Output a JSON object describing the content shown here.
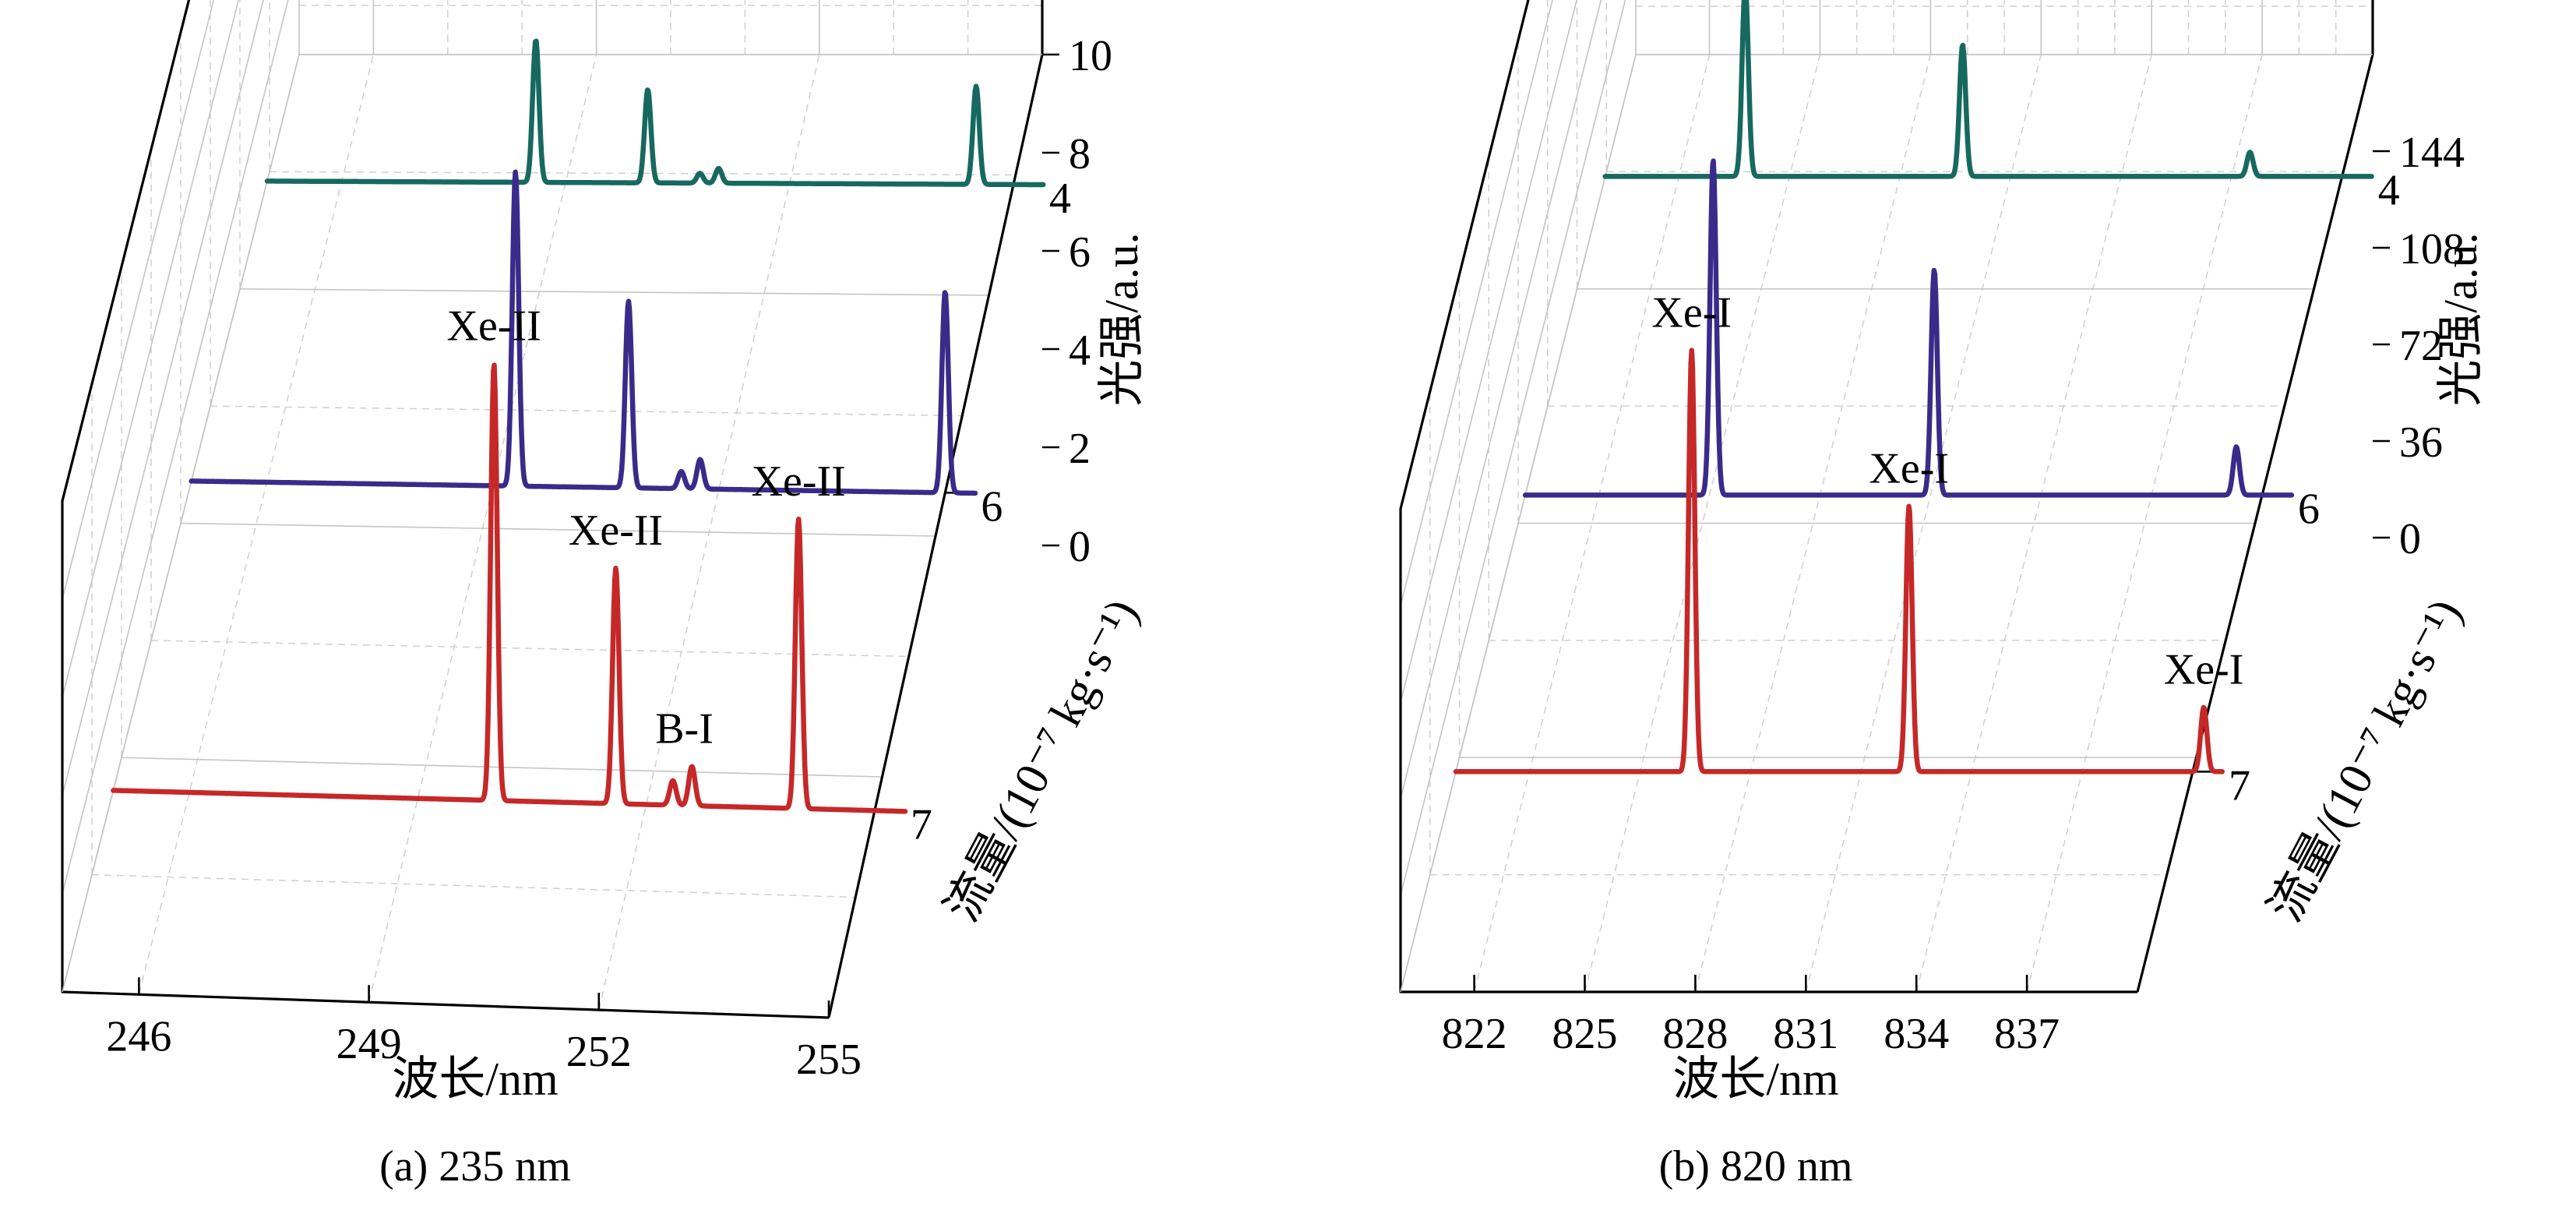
{
  "figure": {
    "colors": {
      "flow_7": "#c62828",
      "flow_6": "#3a2b8a",
      "flow_4": "#17695f"
    }
  },
  "chart_data": [
    {
      "type": "line",
      "caption": "(a) 235 nm",
      "xlabel": "波长/nm",
      "ylabel": "流量/(10⁻⁷ kg·s⁻¹)",
      "zlabel": "光强/a.u.",
      "xlim": [
        245,
        255
      ],
      "x_ticks": [
        "246",
        "249",
        "252",
        "255"
      ],
      "y_ticks": [
        "4",
        "6",
        "7"
      ],
      "zlim": [
        0,
        10
      ],
      "z_ticks": [
        "0",
        "2",
        "4",
        "6",
        "8",
        "10"
      ],
      "grid": true,
      "series": [
        {
          "flow": 7,
          "color": "#c62828",
          "peaks": [
            {
              "x": 250.0,
              "height": 8.9
            },
            {
              "x": 251.6,
              "height": 4.8
            },
            {
              "x": 252.35,
              "height": 0.5
            },
            {
              "x": 252.6,
              "height": 0.8
            },
            {
              "x": 254.0,
              "height": 5.9
            }
          ]
        },
        {
          "flow": 6,
          "color": "#3a2b8a",
          "peaks": [
            {
              "x": 249.3,
              "height": 6.4
            },
            {
              "x": 250.8,
              "height": 3.8
            },
            {
              "x": 251.5,
              "height": 0.35
            },
            {
              "x": 251.75,
              "height": 0.6
            },
            {
              "x": 255.0,
              "height": 4.1
            }
          ]
        },
        {
          "flow": 4,
          "color": "#17695f",
          "peaks": [
            {
              "x": 248.6,
              "height": 2.9
            },
            {
              "x": 250.1,
              "height": 1.9
            },
            {
              "x": 250.8,
              "height": 0.2
            },
            {
              "x": 251.05,
              "height": 0.3
            },
            {
              "x": 254.5,
              "height": 2.0
            }
          ]
        }
      ],
      "annotations": [
        {
          "text": "Xe-II",
          "x": 250.0,
          "flow": 7
        },
        {
          "text": "Xe-II",
          "x": 251.6,
          "flow": 7
        },
        {
          "text": "B-I",
          "x": 252.5,
          "flow": 7
        },
        {
          "text": "Xe-II",
          "x": 254.0,
          "flow": 7
        }
      ]
    },
    {
      "type": "line",
      "caption": "(b) 820 nm",
      "xlabel": "波长/nm",
      "ylabel": "流量/(10⁻⁷ kg·s⁻¹)",
      "zlabel": "光强/a.u.",
      "xlim": [
        820,
        840
      ],
      "x_ticks": [
        "822",
        "825",
        "828",
        "831",
        "834",
        "837"
      ],
      "y_ticks": [
        "4",
        "6",
        "7"
      ],
      "zlim": [
        0,
        180
      ],
      "z_ticks": [
        "0",
        "36",
        "72",
        "108",
        "144"
      ],
      "grid": true,
      "series": [
        {
          "flow": 7,
          "color": "#c62828",
          "peaks": [
            {
              "x": 826.4,
              "height": 157
            },
            {
              "x": 832.3,
              "height": 99
            },
            {
              "x": 840.3,
              "height": 24
            }
          ]
        },
        {
          "flow": 6,
          "color": "#3a2b8a",
          "peaks": [
            {
              "x": 825.1,
              "height": 125
            },
            {
              "x": 831.1,
              "height": 84
            },
            {
              "x": 839.3,
              "height": 18
            }
          ]
        },
        {
          "flow": 4,
          "color": "#17695f",
          "peaks": [
            {
              "x": 823.8,
              "height": 71
            },
            {
              "x": 829.7,
              "height": 49
            },
            {
              "x": 837.5,
              "height": 9
            }
          ]
        }
      ],
      "annotations": [
        {
          "text": "Xe-I",
          "x": 826.4,
          "flow": 7
        },
        {
          "text": "Xe-I",
          "x": 832.3,
          "flow": 7
        },
        {
          "text": "Xe-I",
          "x": 840.3,
          "flow": 7
        }
      ]
    }
  ]
}
